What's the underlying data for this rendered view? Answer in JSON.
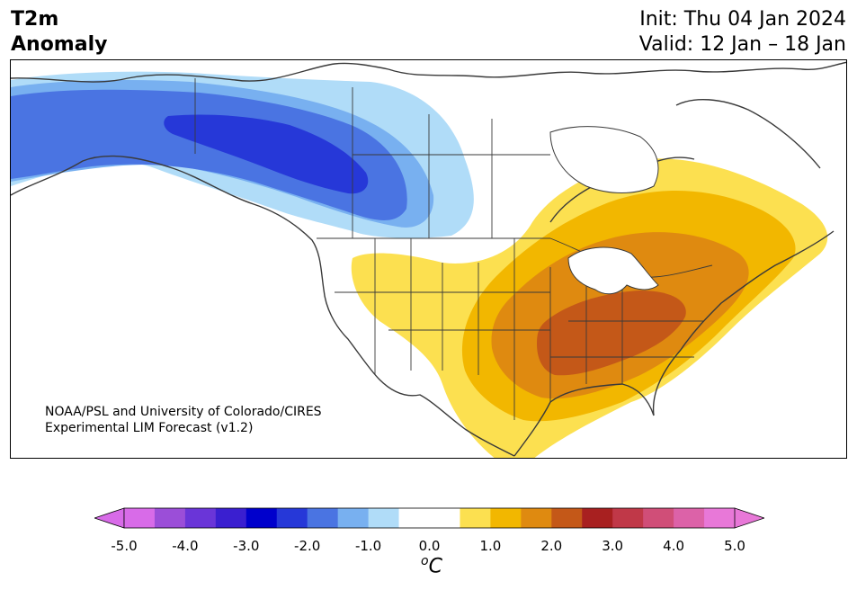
{
  "header": {
    "title_line1": "T2m",
    "title_line2": "Anomaly",
    "init": "Init: Thu 04 Jan 2024",
    "valid": "Valid: 12 Jan – 18 Jan"
  },
  "credit": {
    "line1": "NOAA/PSL and University of Colorado/CIRES",
    "line2": "Experimental LIM Forecast (v1.2)"
  },
  "colorbar": {
    "unit_base": "C",
    "unit_sup": "o",
    "ticks": [
      "-5.0",
      "-4.0",
      "-3.0",
      "-2.0",
      "-1.0",
      "0.0",
      "1.0",
      "2.0",
      "3.0",
      "4.0",
      "5.0"
    ],
    "colors": [
      "#d86be8",
      "#9b4ed8",
      "#6a35d8",
      "#3a1fd0",
      "#0000cc",
      "#2638d8",
      "#4a74e2",
      "#78b0f0",
      "#b0dcf8",
      "#ffffff",
      "#ffffff",
      "#fce050",
      "#f2b700",
      "#df8a10",
      "#c45818",
      "#a82020",
      "#c03848",
      "#d04e78",
      "#dc62a8",
      "#e878d8"
    ],
    "under_color": "#d86be8",
    "over_color": "#e878d8"
  },
  "map": {
    "region": "North America",
    "cold_anomaly": "Western Canada / Alaska",
    "warm_anomaly": "Central and Eastern United States"
  }
}
